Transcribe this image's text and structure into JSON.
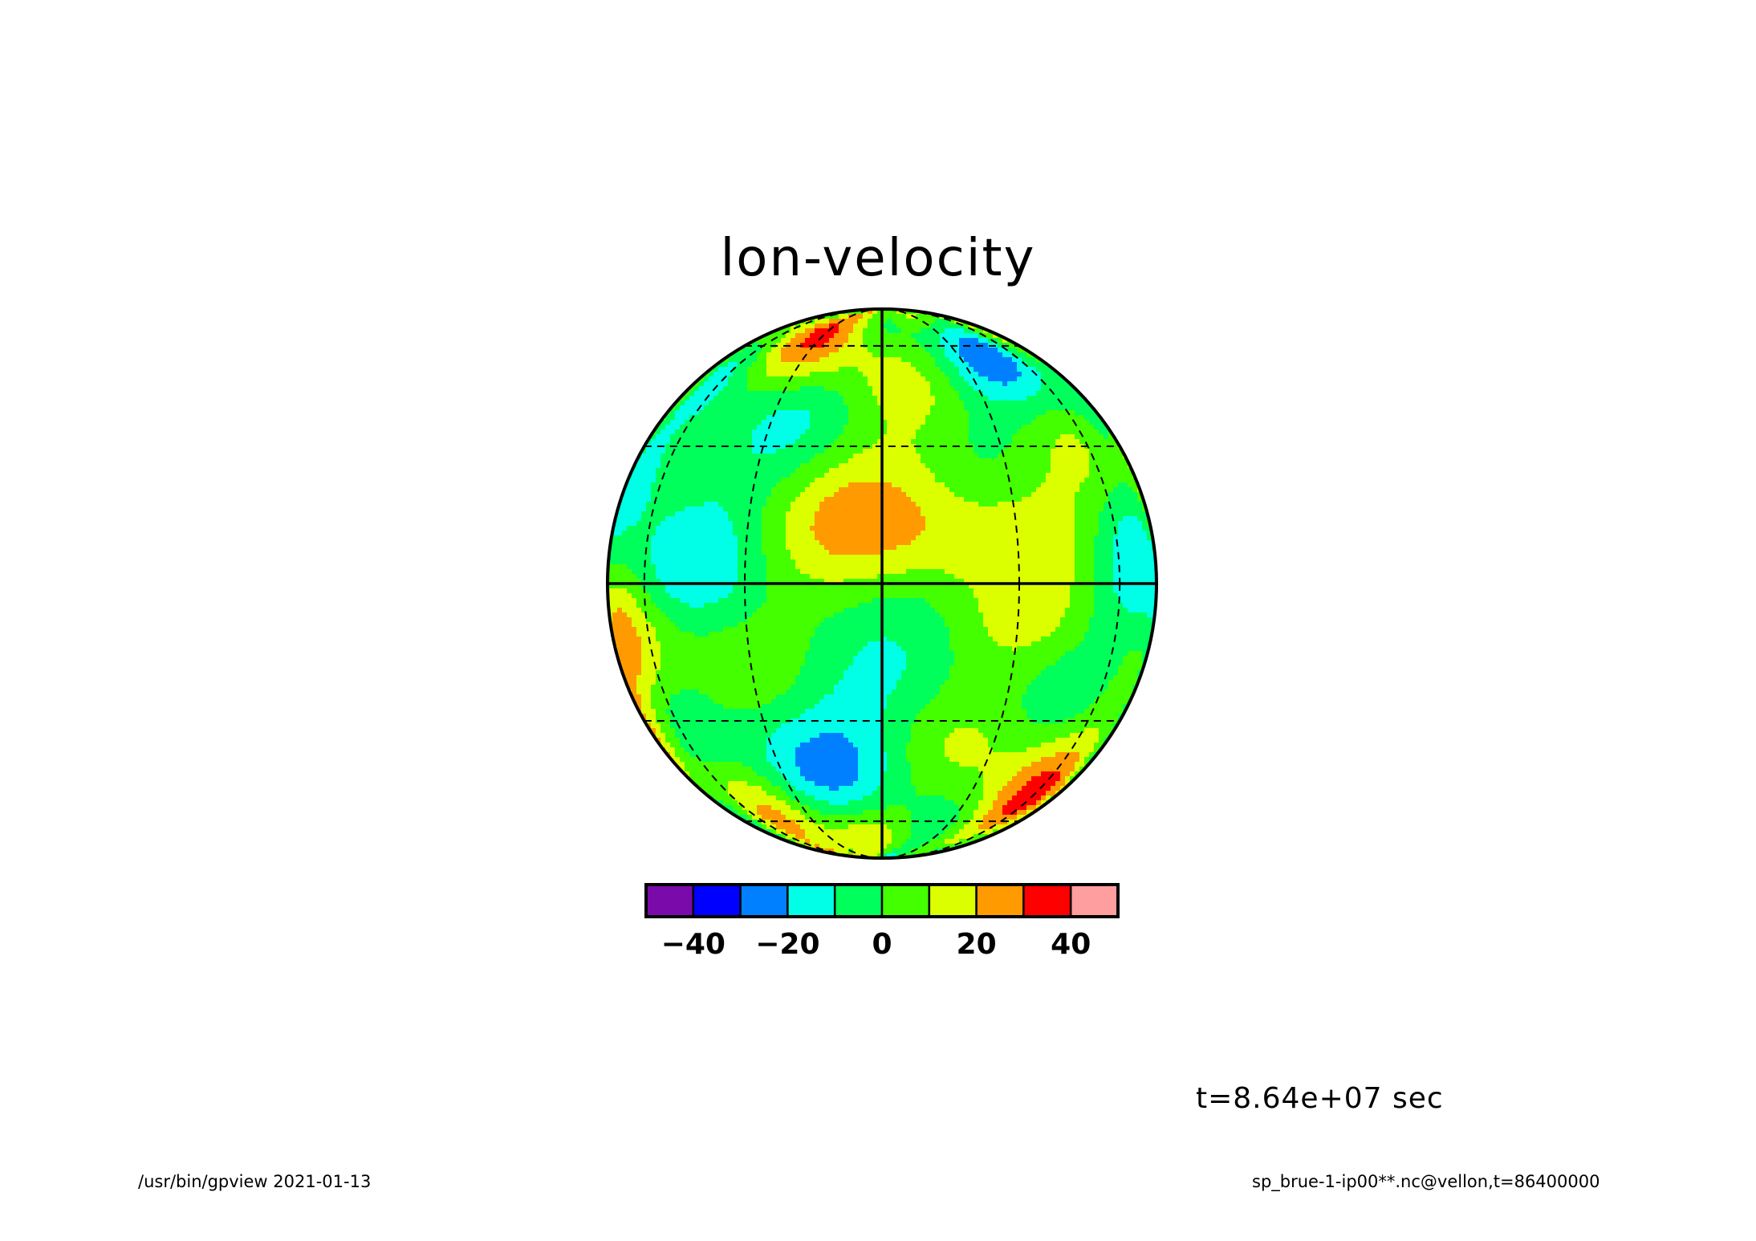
{
  "title": "lon-velocity",
  "time_label": "t=8.64e+07 sec",
  "footer_left": "/usr/bin/gpview   2021-01-13",
  "footer_right": "sp_brue-1-ip00**.nc@vellon,t=86400000",
  "chart_data": {
    "type": "heatmap",
    "projection": "orthographic",
    "title": "lon-velocity",
    "grid": true,
    "colorbar": {
      "levels": [
        -50,
        -40,
        -30,
        -20,
        -10,
        0,
        10,
        20,
        30,
        40,
        50
      ],
      "colors": [
        "#7a0aaa",
        "#0000ff",
        "#0080ff",
        "#00ffe6",
        "#00ff5a",
        "#44ff00",
        "#dcff00",
        "#ff9a00",
        "#ff0000",
        "#ff9e9e"
      ],
      "tick_values": [
        -40,
        -20,
        0,
        20,
        40
      ],
      "tick_labels": [
        "−40",
        "−20",
        "0",
        "20",
        "40"
      ]
    },
    "field_range": [
      -40,
      30
    ]
  }
}
